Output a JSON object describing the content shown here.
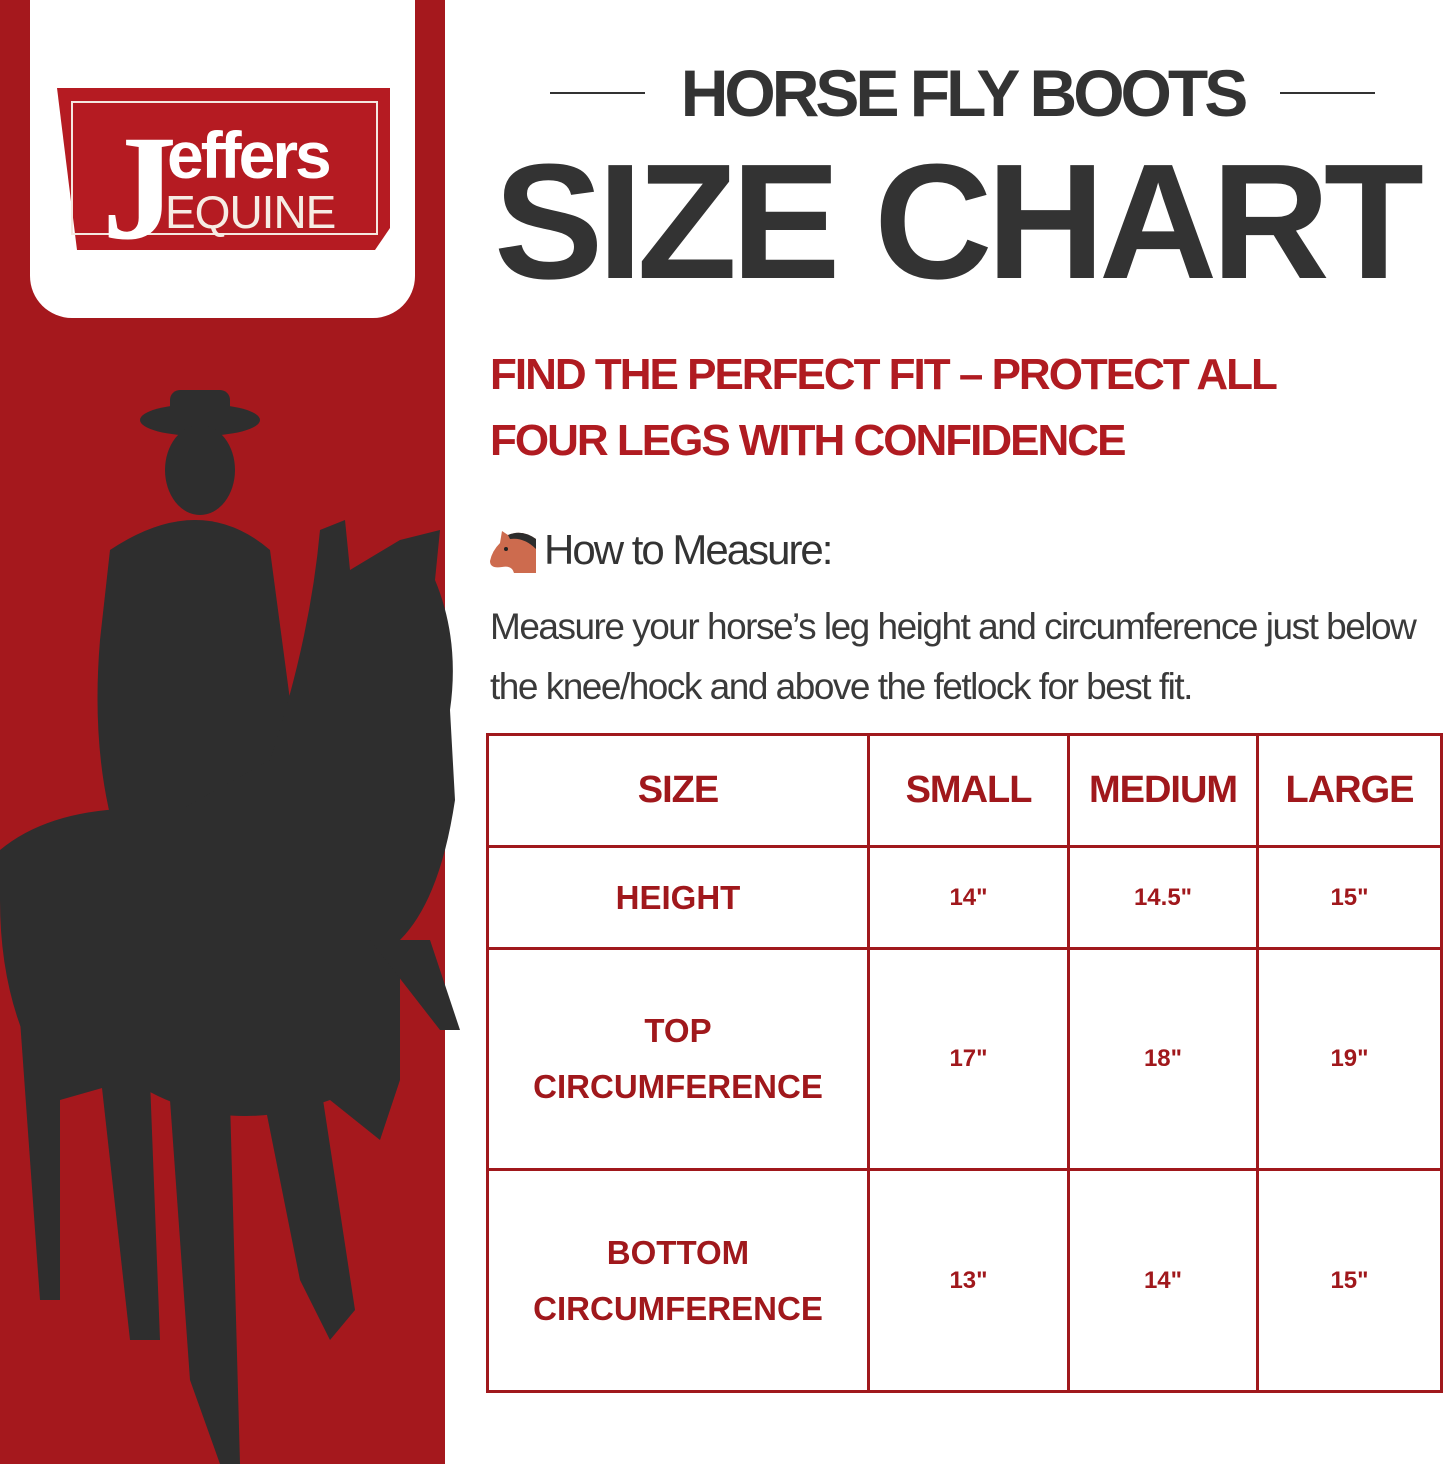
{
  "brand": {
    "logo_main": "jeffers",
    "logo_sub": "EQUINE",
    "color": "#a5181d"
  },
  "header": {
    "kicker": "HORSE FLY BOOTS",
    "title": "SIZE CHART"
  },
  "subtitle": {
    "line1": "FIND THE PERFECT FIT – PROTECT ALL",
    "line2": "FOUR LEGS WITH CONFIDENCE"
  },
  "measure": {
    "icon": "horse-face-icon",
    "heading": "How to Measure:",
    "text": "Measure your horse’s leg height and circumference just below the knee/hock and above the fetlock for best fit."
  },
  "table": {
    "headers": [
      "SIZE",
      "SMALL",
      "MEDIUM",
      "LARGE"
    ],
    "rows": [
      {
        "label": [
          "HEIGHT"
        ],
        "values": [
          "14\"",
          "14.5\"",
          "15\""
        ]
      },
      {
        "label": [
          "TOP",
          "CIRCUMFERENCE"
        ],
        "values": [
          "17\"",
          "18\"",
          "19\""
        ]
      },
      {
        "label": [
          "BOTTOM",
          "CIRCUMFERENCE"
        ],
        "values": [
          "13\"",
          "14\"",
          "15\""
        ]
      }
    ]
  }
}
